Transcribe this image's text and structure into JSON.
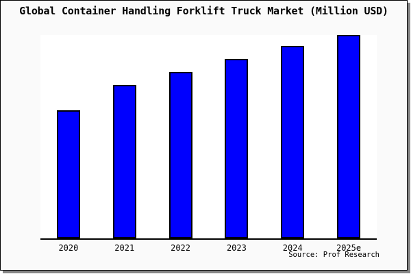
{
  "chart_data": {
    "type": "bar",
    "title": "Global Container Handling Forklift Truck Market (Million USD)",
    "categories": [
      "2020",
      "2021",
      "2022",
      "2023",
      "2024",
      "2025e"
    ],
    "values": [
      63,
      75.5,
      81.7,
      88.3,
      94.5,
      100
    ],
    "value_scale": "relative bar heights estimated from pixels; tallest bar (2025e) = 100; no y-axis, gridlines, or value labels are shown",
    "xlabel": "",
    "ylabel": "",
    "ylim": [
      0,
      100
    ],
    "grid": false,
    "legend": false,
    "bar_color": "#0000fe",
    "bar_border_color": "#000000"
  },
  "source_note": "Source: Prof Research",
  "colors": {
    "figure_background": "#fafafa",
    "plot_background": "#ffffff",
    "frame_border": "#000000",
    "drop_shadow": "#888888",
    "text": "#000000"
  }
}
